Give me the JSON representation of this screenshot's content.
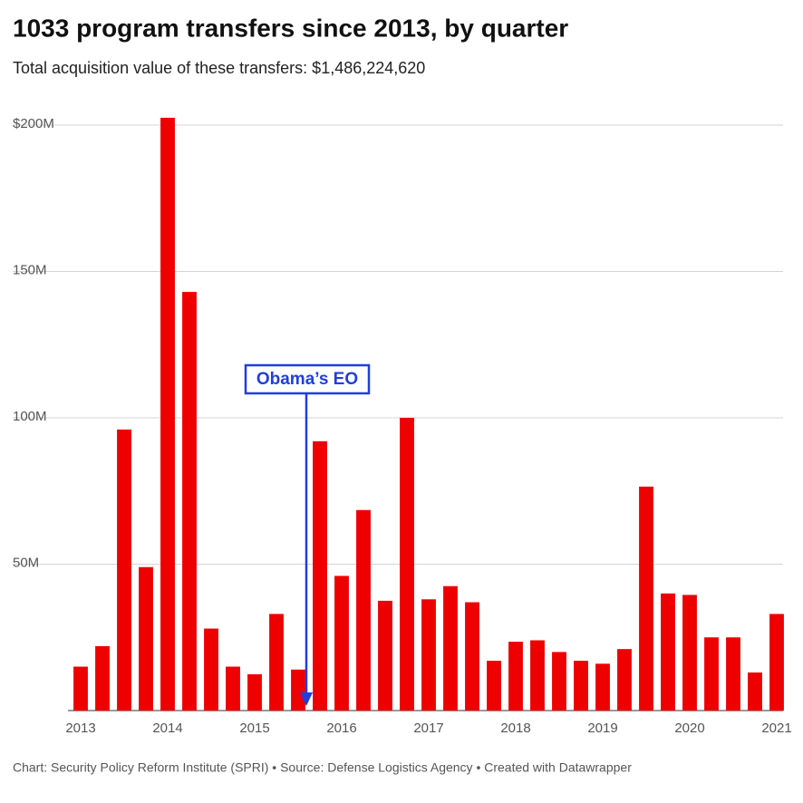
{
  "chart_data": {
    "type": "bar",
    "title": "1033 program transfers since 2013, by quarter",
    "subtitle": "Total acquisition value of these transfers: $1,486,224,620",
    "footer": "Chart: Security Policy Reform Institute (SPRI) • Source: Defense Logistics Agency • Created with Datawrapper",
    "annotation": "Obama’s EO",
    "categories": [
      "2013",
      null,
      null,
      null,
      "2014",
      null,
      null,
      null,
      "2015",
      null,
      null,
      null,
      "2016",
      null,
      null,
      null,
      "2017",
      null,
      null,
      null,
      "2018",
      null,
      null,
      null,
      "2019",
      null,
      null,
      null,
      "2020",
      null,
      null,
      null,
      "2021"
    ],
    "values": [
      15,
      22,
      96,
      49,
      202.5,
      143,
      28,
      15,
      12.4,
      33,
      14,
      92,
      46,
      68.5,
      37.5,
      100,
      38,
      42.5,
      37,
      17,
      23.5,
      24,
      20,
      17,
      16,
      21,
      76.5,
      40,
      39.5,
      25,
      25,
      13,
      33
    ],
    "color": "#ee0000",
    "ylim": [
      0,
      200
    ],
    "yticks": [
      {
        "value": 50,
        "label": "50M"
      },
      {
        "value": 100,
        "label": "100M"
      },
      {
        "value": 150,
        "label": "150M"
      },
      {
        "value": 200,
        "label": "$200M"
      }
    ],
    "grid": true
  }
}
